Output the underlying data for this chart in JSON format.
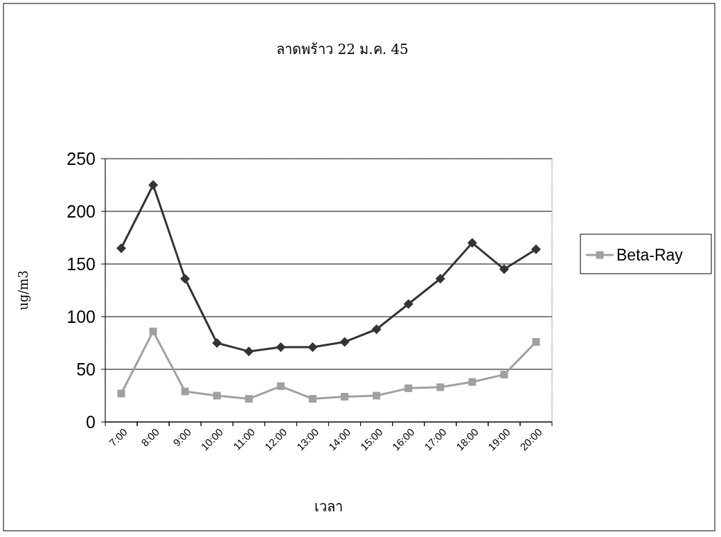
{
  "chart_data": {
    "type": "line",
    "title": "ลาดพร้าว   22 ม.ค. 45",
    "xlabel": "เวลา",
    "ylabel": "ug/m3",
    "categories": [
      "7:00",
      "8:00",
      "9:00",
      "10:00",
      "11:00",
      "12:00",
      "13:00",
      "14:00",
      "15:00",
      "16:00",
      "17:00",
      "18:00",
      "19:00",
      "20:00"
    ],
    "series": [
      {
        "color": "#333333",
        "marker": "diamond",
        "values": [
          165,
          225,
          136,
          75,
          67,
          71,
          71,
          76,
          88,
          112,
          136,
          170,
          145,
          164
        ]
      },
      {
        "name": "Beta-Ray",
        "color": "#a0a0a0",
        "marker": "square",
        "values": [
          27,
          86,
          29,
          25,
          22,
          34,
          22,
          24,
          25,
          32,
          33,
          38,
          45,
          76
        ]
      }
    ],
    "ylim": [
      0,
      250
    ],
    "yticks": [
      0,
      50,
      100,
      150,
      200,
      250
    ],
    "grid": "y",
    "legend": "right"
  }
}
